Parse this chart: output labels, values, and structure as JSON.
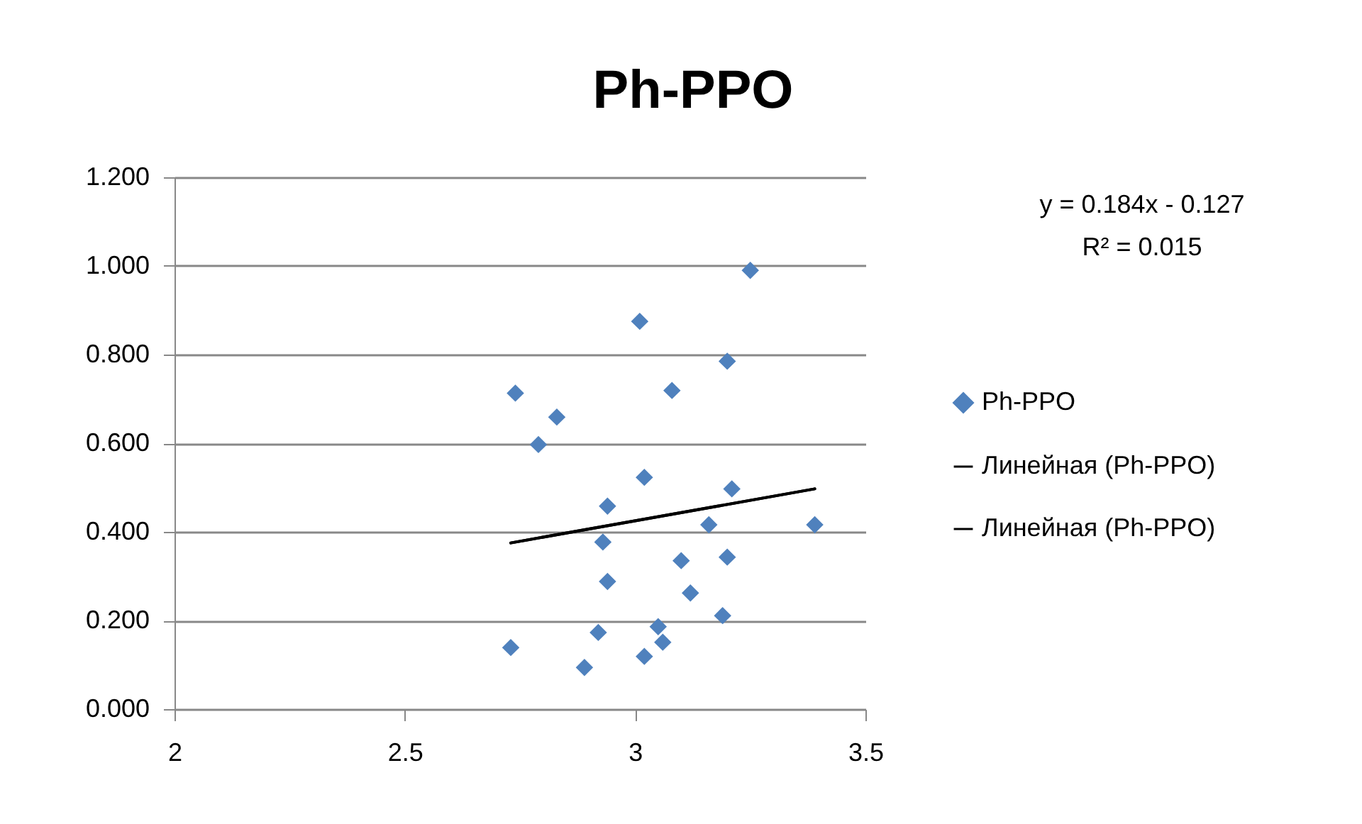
{
  "chart_data": {
    "type": "scatter",
    "title": "Ph-PPO",
    "annotations": [
      "y = 0.184x - 0.127",
      "R² = 0.015"
    ],
    "series": [
      {
        "name": "Ph-PPO",
        "marker": "diamond",
        "color": "#4f81bd",
        "x": [
          3.25,
          3.01,
          3.2,
          2.74,
          3.08,
          2.83,
          2.79,
          3.02,
          3.21,
          2.94,
          3.16,
          3.39,
          2.93,
          3.1,
          3.2,
          2.94,
          3.12,
          3.19,
          2.92,
          3.05,
          3.06,
          2.73,
          2.89,
          3.02
        ],
        "values": [
          0.99,
          0.875,
          0.785,
          0.713,
          0.719,
          0.659,
          0.597,
          0.523,
          0.497,
          0.458,
          0.416,
          0.416,
          0.377,
          0.335,
          0.343,
          0.288,
          0.262,
          0.211,
          0.173,
          0.186,
          0.151,
          0.139,
          0.094,
          0.119
        ]
      },
      {
        "name": "Линейная (Ph-PPO)",
        "type": "line",
        "color": "#000000",
        "x": [
          2.73,
          3.39
        ],
        "values": [
          0.375,
          0.497
        ]
      },
      {
        "name": "Линейная (Ph-PPO)",
        "type": "line",
        "color": "#000000",
        "x": [
          2.73,
          3.39
        ],
        "values": [
          0.375,
          0.497
        ]
      }
    ],
    "xlim": [
      2,
      3.5
    ],
    "xticks": [
      2,
      2.5,
      3,
      3.5
    ],
    "ylim": [
      0,
      1.2
    ],
    "yticks": [
      {
        "value": 0,
        "label": "0.000"
      },
      {
        "value": 0.2,
        "label": "0.200"
      },
      {
        "value": 0.4,
        "label": "0.400"
      },
      {
        "value": 0.6,
        "label": "0.600"
      },
      {
        "value": 0.8,
        "label": "0.800"
      },
      {
        "value": 1,
        "label": "1.000"
      },
      {
        "value": 1.2,
        "label": "1.200"
      }
    ],
    "grid": "y",
    "legend": "right"
  }
}
